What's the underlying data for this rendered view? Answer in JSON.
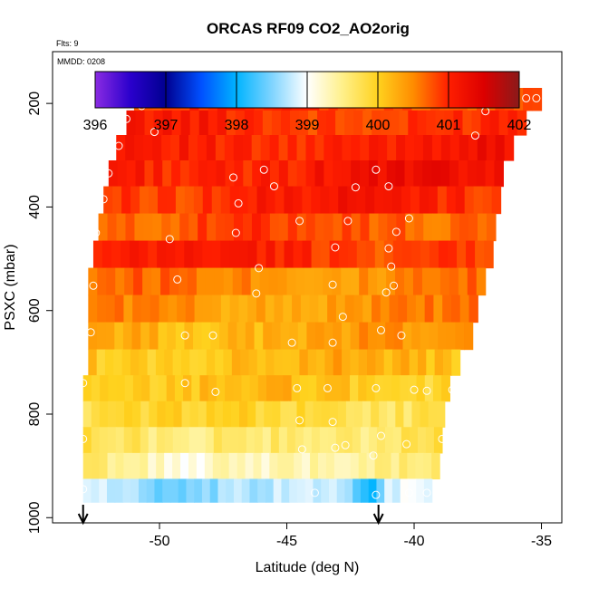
{
  "chart_data": {
    "type": "heatmap",
    "title": "ORCAS RF09 CO2_AO2orig",
    "flts_label": "Flts: 9",
    "mmdd_label": "MMDD: 0208",
    "xlabel": "Latitude (deg N)",
    "ylabel": "PSXC (mbar)",
    "xlim": [
      -54.2,
      -34.2
    ],
    "ylim": [
      1010,
      100
    ],
    "x_ticks": [
      -50,
      -45,
      -40,
      -35
    ],
    "x_tick_labels": [
      "-50",
      "-45",
      "-40",
      "-35"
    ],
    "y_ticks": [
      200,
      400,
      600,
      800,
      1000
    ],
    "y_tick_labels": [
      "200",
      "400",
      "600",
      "800",
      "1000"
    ],
    "colorbar": {
      "range": [
        396,
        402
      ],
      "ticks": [
        396,
        397,
        398,
        399,
        400,
        401,
        402
      ],
      "tick_labels": [
        "396",
        "397",
        "398",
        "399",
        "400",
        "401",
        "402"
      ],
      "stops": [
        {
          "v": 396.0,
          "color": "#8a2be2"
        },
        {
          "v": 396.5,
          "color": "#2a00cc"
        },
        {
          "v": 397.0,
          "color": "#000090"
        },
        {
          "v": 397.5,
          "color": "#0050ff"
        },
        {
          "v": 398.0,
          "color": "#00b4ff"
        },
        {
          "v": 398.5,
          "color": "#7fd4ff"
        },
        {
          "v": 399.0,
          "color": "#ffffff"
        },
        {
          "v": 399.5,
          "color": "#fff08a"
        },
        {
          "v": 400.0,
          "color": "#ffd21e"
        },
        {
          "v": 400.5,
          "color": "#ff8c00"
        },
        {
          "v": 401.0,
          "color": "#ff1e00"
        },
        {
          "v": 401.5,
          "color": "#dc0000"
        },
        {
          "v": 402.0,
          "color": "#8b1a1a"
        }
      ]
    },
    "rows": [
      {
        "p": 190,
        "lat_min": -51.0,
        "lat_max": -35.0,
        "co2": 400.85
      },
      {
        "p": 237,
        "lat_min": -51.3,
        "lat_max": -35.6,
        "co2": 400.95
      },
      {
        "p": 285,
        "lat_min": -51.7,
        "lat_max": -36.1,
        "co2": 401.05
      },
      {
        "p": 335,
        "lat_min": -52.0,
        "lat_max": -36.5,
        "co2": 401.1
      },
      {
        "p": 385,
        "lat_min": -52.2,
        "lat_max": -36.6,
        "co2": 401.0
      },
      {
        "p": 440,
        "lat_min": -52.4,
        "lat_max": -36.8,
        "co2": 400.75
      },
      {
        "p": 490,
        "lat_min": -52.6,
        "lat_max": -36.9,
        "co2": 400.95
      },
      {
        "p": 545,
        "lat_min": -52.8,
        "lat_max": -37.2,
        "co2": 400.55
      },
      {
        "p": 595,
        "lat_min": -52.8,
        "lat_max": -37.5,
        "co2": 400.45
      },
      {
        "p": 650,
        "lat_min": -52.8,
        "lat_max": -37.7,
        "co2": 400.3
      },
      {
        "p": 700,
        "lat_min": -52.8,
        "lat_max": -38.2,
        "co2": 400.15
      },
      {
        "p": 750,
        "lat_min": -53.0,
        "lat_max": -38.6,
        "co2": 400.05
      },
      {
        "p": 800,
        "lat_min": -53.0,
        "lat_max": -38.8,
        "co2": 399.85
      },
      {
        "p": 850,
        "lat_min": -53.0,
        "lat_max": -38.9,
        "co2": 399.7
      },
      {
        "p": 900,
        "lat_min": -53.0,
        "lat_max": -39.0,
        "co2": 399.45
      },
      {
        "p": 950,
        "lat_min": -53.0,
        "lat_max": -39.3,
        "co2": 398.8
      }
    ],
    "profile_markers": [
      -53.0,
      -41.4
    ]
  }
}
